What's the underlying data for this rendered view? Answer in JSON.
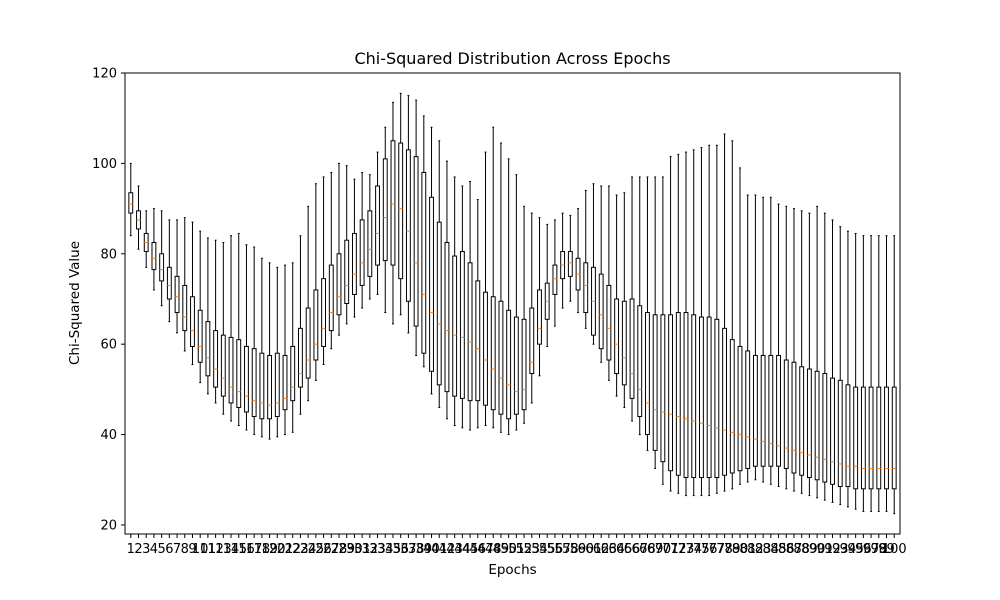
{
  "chart_data": {
    "type": "boxplot",
    "title": "Chi-Squared Distribution Across Epochs",
    "xlabel": "Epochs",
    "ylabel": "Chi-Squared Value",
    "ylim": [
      18,
      120
    ],
    "yticks": [
      20,
      40,
      60,
      80,
      100,
      120
    ],
    "grid": false,
    "legend": "none",
    "colors": {
      "box": "#000000",
      "median": "#ff7f0e",
      "axes": "#000000",
      "background": "#ffffff"
    },
    "categories": [
      "1",
      "2",
      "3",
      "4",
      "5",
      "6",
      "7",
      "8",
      "9",
      "10",
      "11",
      "12",
      "13",
      "14",
      "15",
      "16",
      "17",
      "18",
      "19",
      "20",
      "21",
      "22",
      "23",
      "24",
      "25",
      "26",
      "27",
      "28",
      "29",
      "30",
      "31",
      "32",
      "33",
      "34",
      "35",
      "36",
      "37",
      "38",
      "39",
      "40",
      "41",
      "42",
      "43",
      "44",
      "45",
      "46",
      "47",
      "48",
      "49",
      "50",
      "51",
      "52",
      "53",
      "54",
      "55",
      "56",
      "57",
      "58",
      "59",
      "60",
      "61",
      "62",
      "63",
      "64",
      "65",
      "66",
      "67",
      "68",
      "69",
      "70",
      "71",
      "72",
      "73",
      "74",
      "75",
      "76",
      "77",
      "78",
      "79",
      "80",
      "81",
      "82",
      "83",
      "84",
      "85",
      "86",
      "87",
      "88",
      "89",
      "90",
      "91",
      "92",
      "93",
      "94",
      "95",
      "96",
      "97",
      "98",
      "99",
      "100"
    ],
    "boxes": [
      {
        "min": 84.0,
        "q1": 89.0,
        "median": 91.0,
        "q3": 93.5,
        "max": 100.0
      },
      {
        "min": 81.0,
        "q1": 85.5,
        "median": 87.5,
        "q3": 89.5,
        "max": 95.0
      },
      {
        "min": 77.0,
        "q1": 80.5,
        "median": 82.5,
        "q3": 84.5,
        "max": 89.5
      },
      {
        "min": 72.0,
        "q1": 76.5,
        "median": 79.0,
        "q3": 82.5,
        "max": 90.0
      },
      {
        "min": 68.5,
        "q1": 74.0,
        "median": 76.5,
        "q3": 80.0,
        "max": 89.5
      },
      {
        "min": 65.0,
        "q1": 70.0,
        "median": 73.0,
        "q3": 77.0,
        "max": 87.5
      },
      {
        "min": 62.5,
        "q1": 67.0,
        "median": 70.5,
        "q3": 75.0,
        "max": 87.5
      },
      {
        "min": 58.5,
        "q1": 63.0,
        "median": 66.0,
        "q3": 73.0,
        "max": 88.0
      },
      {
        "min": 55.5,
        "q1": 59.5,
        "median": 63.0,
        "q3": 70.5,
        "max": 87.0
      },
      {
        "min": 51.5,
        "q1": 56.0,
        "median": 59.5,
        "q3": 67.5,
        "max": 85.0
      },
      {
        "min": 49.0,
        "q1": 53.0,
        "median": 57.0,
        "q3": 65.0,
        "max": 83.5
      },
      {
        "min": 47.0,
        "q1": 50.5,
        "median": 54.5,
        "q3": 63.0,
        "max": 83.0
      },
      {
        "min": 44.5,
        "q1": 48.5,
        "median": 52.5,
        "q3": 62.0,
        "max": 82.5
      },
      {
        "min": 43.0,
        "q1": 47.0,
        "median": 50.5,
        "q3": 61.5,
        "max": 84.0
      },
      {
        "min": 42.0,
        "q1": 46.0,
        "median": 49.5,
        "q3": 61.0,
        "max": 84.5
      },
      {
        "min": 41.0,
        "q1": 45.0,
        "median": 48.5,
        "q3": 59.5,
        "max": 82.0
      },
      {
        "min": 40.0,
        "q1": 44.0,
        "median": 47.5,
        "q3": 59.0,
        "max": 81.5
      },
      {
        "min": 39.5,
        "q1": 43.5,
        "median": 47.0,
        "q3": 58.0,
        "max": 79.0
      },
      {
        "min": 39.0,
        "q1": 43.5,
        "median": 46.5,
        "q3": 57.5,
        "max": 78.0
      },
      {
        "min": 39.5,
        "q1": 44.0,
        "median": 47.0,
        "q3": 58.0,
        "max": 77.0
      },
      {
        "min": 40.0,
        "q1": 45.5,
        "median": 48.0,
        "q3": 57.5,
        "max": 77.5
      },
      {
        "min": 40.5,
        "q1": 47.5,
        "median": 50.5,
        "q3": 59.5,
        "max": 78.0
      },
      {
        "min": 44.5,
        "q1": 50.5,
        "median": 53.5,
        "q3": 63.5,
        "max": 84.0
      },
      {
        "min": 47.5,
        "q1": 52.5,
        "median": 56.5,
        "q3": 68.0,
        "max": 90.5
      },
      {
        "min": 52.0,
        "q1": 56.5,
        "median": 60.0,
        "q3": 72.0,
        "max": 95.5
      },
      {
        "min": 55.5,
        "q1": 59.5,
        "median": 63.5,
        "q3": 74.5,
        "max": 97.0
      },
      {
        "min": 59.0,
        "q1": 63.0,
        "median": 67.0,
        "q3": 77.5,
        "max": 98.0
      },
      {
        "min": 62.0,
        "q1": 66.5,
        "median": 70.5,
        "q3": 80.0,
        "max": 100.0
      },
      {
        "min": 64.5,
        "q1": 69.0,
        "median": 73.0,
        "q3": 83.0,
        "max": 99.5
      },
      {
        "min": 66.0,
        "q1": 71.0,
        "median": 75.5,
        "q3": 84.5,
        "max": 96.5
      },
      {
        "min": 68.0,
        "q1": 73.0,
        "median": 78.0,
        "q3": 87.5,
        "max": 98.0
      },
      {
        "min": 70.0,
        "q1": 75.0,
        "median": 81.0,
        "q3": 89.5,
        "max": 97.5
      },
      {
        "min": 71.0,
        "q1": 77.5,
        "median": 84.5,
        "q3": 95.0,
        "max": 102.5
      },
      {
        "min": 67.0,
        "q1": 78.5,
        "median": 88.0,
        "q3": 101.0,
        "max": 108.0
      },
      {
        "min": 64.5,
        "q1": 77.5,
        "median": 91.0,
        "q3": 105.0,
        "max": 113.5
      },
      {
        "min": 66.5,
        "q1": 74.5,
        "median": 90.0,
        "q3": 104.5,
        "max": 115.5
      },
      {
        "min": 62.5,
        "q1": 69.5,
        "median": 85.0,
        "q3": 103.0,
        "max": 115.0
      },
      {
        "min": 57.5,
        "q1": 64.0,
        "median": 78.0,
        "q3": 101.5,
        "max": 114.0
      },
      {
        "min": 55.0,
        "q1": 58.0,
        "median": 71.0,
        "q3": 98.0,
        "max": 110.5
      },
      {
        "min": 49.0,
        "q1": 54.0,
        "median": 67.0,
        "q3": 92.5,
        "max": 108.0
      },
      {
        "min": 46.0,
        "q1": 51.0,
        "median": 64.5,
        "q3": 87.0,
        "max": 105.0
      },
      {
        "min": 43.5,
        "q1": 49.5,
        "median": 63.0,
        "q3": 82.5,
        "max": 100.5
      },
      {
        "min": 42.0,
        "q1": 48.5,
        "median": 62.0,
        "q3": 79.5,
        "max": 97.0
      },
      {
        "min": 41.5,
        "q1": 48.0,
        "median": 61.5,
        "q3": 80.5,
        "max": 95.0
      },
      {
        "min": 41.0,
        "q1": 47.5,
        "median": 60.5,
        "q3": 78.0,
        "max": 96.0
      },
      {
        "min": 41.5,
        "q1": 47.5,
        "median": 59.0,
        "q3": 74.0,
        "max": 92.0
      },
      {
        "min": 42.0,
        "q1": 46.5,
        "median": 56.5,
        "q3": 71.5,
        "max": 102.5
      },
      {
        "min": 41.5,
        "q1": 45.5,
        "median": 54.5,
        "q3": 70.5,
        "max": 108.0
      },
      {
        "min": 40.5,
        "q1": 44.5,
        "median": 52.5,
        "q3": 69.5,
        "max": 104.5
      },
      {
        "min": 40.0,
        "q1": 43.5,
        "median": 51.0,
        "q3": 67.5,
        "max": 101.0
      },
      {
        "min": 41.0,
        "q1": 44.5,
        "median": 49.5,
        "q3": 66.0,
        "max": 97.5
      },
      {
        "min": 42.5,
        "q1": 45.5,
        "median": 50.0,
        "q3": 65.5,
        "max": 90.5
      },
      {
        "min": 47.0,
        "q1": 53.5,
        "median": 56.0,
        "q3": 68.0,
        "max": 89.0
      },
      {
        "min": 53.0,
        "q1": 60.0,
        "median": 63.5,
        "q3": 72.0,
        "max": 88.0
      },
      {
        "min": 59.5,
        "q1": 65.5,
        "median": 69.5,
        "q3": 73.5,
        "max": 86.5
      },
      {
        "min": 64.0,
        "q1": 71.0,
        "median": 74.5,
        "q3": 77.5,
        "max": 87.5
      },
      {
        "min": 68.0,
        "q1": 74.5,
        "median": 77.5,
        "q3": 80.5,
        "max": 89.0
      },
      {
        "min": 69.5,
        "q1": 75.0,
        "median": 78.0,
        "q3": 80.5,
        "max": 88.5
      },
      {
        "min": 67.0,
        "q1": 72.0,
        "median": 75.5,
        "q3": 79.0,
        "max": 90.0
      },
      {
        "min": 63.5,
        "q1": 67.0,
        "median": 73.0,
        "q3": 78.0,
        "max": 94.0
      },
      {
        "min": 60.0,
        "q1": 62.0,
        "median": 69.5,
        "q3": 77.0,
        "max": 95.5
      },
      {
        "min": 56.0,
        "q1": 59.0,
        "median": 66.5,
        "q3": 75.5,
        "max": 95.0
      },
      {
        "min": 52.0,
        "q1": 56.5,
        "median": 63.5,
        "q3": 73.0,
        "max": 95.0
      },
      {
        "min": 48.5,
        "q1": 53.5,
        "median": 60.0,
        "q3": 70.0,
        "max": 93.0
      },
      {
        "min": 46.0,
        "q1": 51.0,
        "median": 57.0,
        "q3": 69.5,
        "max": 93.5
      },
      {
        "min": 43.0,
        "q1": 48.0,
        "median": 53.5,
        "q3": 70.0,
        "max": 97.0
      },
      {
        "min": 40.0,
        "q1": 44.0,
        "median": 50.0,
        "q3": 68.5,
        "max": 97.0
      },
      {
        "min": 36.5,
        "q1": 40.0,
        "median": 47.0,
        "q3": 67.0,
        "max": 97.0
      },
      {
        "min": 32.5,
        "q1": 36.5,
        "median": 45.5,
        "q3": 66.5,
        "max": 97.0
      },
      {
        "min": 29.0,
        "q1": 34.0,
        "median": 45.0,
        "q3": 66.5,
        "max": 97.0
      },
      {
        "min": 27.5,
        "q1": 32.0,
        "median": 44.5,
        "q3": 66.5,
        "max": 101.5
      },
      {
        "min": 27.0,
        "q1": 31.0,
        "median": 44.0,
        "q3": 67.0,
        "max": 102.0
      },
      {
        "min": 26.5,
        "q1": 30.5,
        "median": 43.5,
        "q3": 67.0,
        "max": 102.5
      },
      {
        "min": 26.5,
        "q1": 30.5,
        "median": 43.0,
        "q3": 66.5,
        "max": 103.0
      },
      {
        "min": 26.5,
        "q1": 30.5,
        "median": 42.5,
        "q3": 66.0,
        "max": 103.5
      },
      {
        "min": 26.5,
        "q1": 30.5,
        "median": 42.0,
        "q3": 66.0,
        "max": 104.0
      },
      {
        "min": 27.0,
        "q1": 30.5,
        "median": 41.5,
        "q3": 65.5,
        "max": 104.0
      },
      {
        "min": 27.5,
        "q1": 31.0,
        "median": 41.0,
        "q3": 63.5,
        "max": 106.5
      },
      {
        "min": 28.0,
        "q1": 31.5,
        "median": 40.5,
        "q3": 61.0,
        "max": 105.0
      },
      {
        "min": 29.0,
        "q1": 32.0,
        "median": 40.0,
        "q3": 59.5,
        "max": 99.0
      },
      {
        "min": 29.5,
        "q1": 32.5,
        "median": 39.5,
        "q3": 58.5,
        "max": 93.0
      },
      {
        "min": 30.0,
        "q1": 33.0,
        "median": 39.0,
        "q3": 57.5,
        "max": 93.0
      },
      {
        "min": 29.5,
        "q1": 33.0,
        "median": 38.5,
        "q3": 57.5,
        "max": 92.5
      },
      {
        "min": 29.0,
        "q1": 33.0,
        "median": 38.0,
        "q3": 57.5,
        "max": 92.5
      },
      {
        "min": 28.5,
        "q1": 33.0,
        "median": 37.5,
        "q3": 57.5,
        "max": 91.0
      },
      {
        "min": 28.0,
        "q1": 32.5,
        "median": 37.0,
        "q3": 56.5,
        "max": 90.5
      },
      {
        "min": 27.5,
        "q1": 31.5,
        "median": 36.5,
        "q3": 56.0,
        "max": 90.0
      },
      {
        "min": 27.0,
        "q1": 31.0,
        "median": 36.0,
        "q3": 55.0,
        "max": 89.5
      },
      {
        "min": 26.5,
        "q1": 30.5,
        "median": 35.5,
        "q3": 54.5,
        "max": 89.0
      },
      {
        "min": 26.0,
        "q1": 30.0,
        "median": 35.0,
        "q3": 54.0,
        "max": 90.5
      },
      {
        "min": 25.5,
        "q1": 29.5,
        "median": 34.5,
        "q3": 53.5,
        "max": 89.0
      },
      {
        "min": 25.0,
        "q1": 29.0,
        "median": 34.0,
        "q3": 52.5,
        "max": 87.5
      },
      {
        "min": 24.5,
        "q1": 28.5,
        "median": 33.5,
        "q3": 52.0,
        "max": 86.0
      },
      {
        "min": 24.0,
        "q1": 28.5,
        "median": 33.0,
        "q3": 51.0,
        "max": 85.0
      },
      {
        "min": 23.5,
        "q1": 28.0,
        "median": 33.0,
        "q3": 50.5,
        "max": 84.5
      },
      {
        "min": 23.0,
        "q1": 28.0,
        "median": 32.5,
        "q3": 50.5,
        "max": 84.0
      },
      {
        "min": 23.0,
        "q1": 28.0,
        "median": 32.5,
        "q3": 50.5,
        "max": 84.0
      },
      {
        "min": 23.0,
        "q1": 28.0,
        "median": 32.5,
        "q3": 50.5,
        "max": 84.0
      },
      {
        "min": 23.0,
        "q1": 28.0,
        "median": 32.5,
        "q3": 50.5,
        "max": 84.0
      },
      {
        "min": 22.5,
        "q1": 28.0,
        "median": 32.5,
        "q3": 50.5,
        "max": 84.0
      }
    ]
  }
}
